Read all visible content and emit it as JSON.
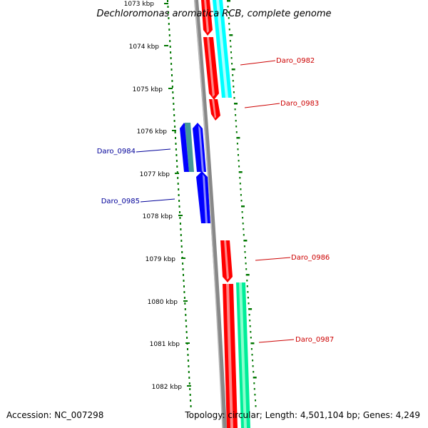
{
  "title": "Dechloromonas aromatica RCB, complete genome",
  "accession": "Accession: NC_007298",
  "topology": "Topology: circular; Length: 4,501,104 bp; Genes: 4,249",
  "kbp_labels": [
    "1073 kbp",
    "1074 kbp",
    "1075 kbp",
    "1076 kbp",
    "1077 kbp",
    "1078 kbp",
    "1079 kbp",
    "1080 kbp",
    "1081 kbp",
    "1082 kbp"
  ],
  "genes": [
    {
      "id": "Daro_0982",
      "color": "#cc0000",
      "strand": "forward"
    },
    {
      "id": "Daro_0983",
      "color": "#cc0000",
      "strand": "forward"
    },
    {
      "id": "Daro_0984",
      "color": "#000099",
      "strand": "reverse"
    },
    {
      "id": "Daro_0985",
      "color": "#000099",
      "strand": "reverse"
    },
    {
      "id": "Daro_0986",
      "color": "#cc0000",
      "strand": "forward"
    },
    {
      "id": "Daro_0987",
      "color": "#cc0000",
      "strand": "forward"
    }
  ],
  "colors": {
    "forward_cds": "#ff0000",
    "reverse_cds": "#0000ff",
    "cyan_feature": "#00ffff",
    "green_feature": "#00ee99",
    "backbone": "#888888",
    "tick": "#007700"
  }
}
